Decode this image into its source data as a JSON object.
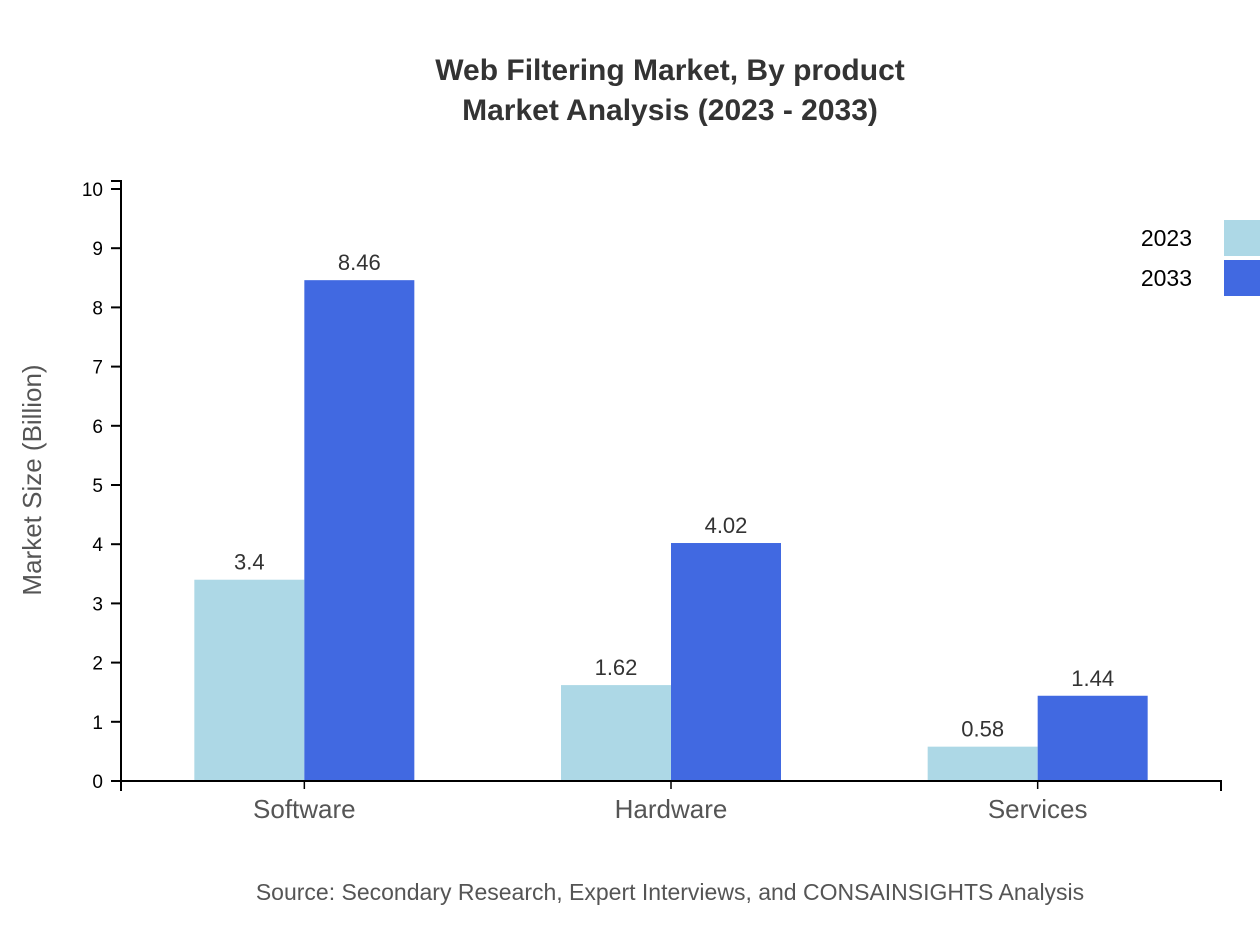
{
  "chart_data": {
    "type": "bar",
    "title": [
      "Web Filtering Market, By product",
      "Market Analysis (2023 - 2033)"
    ],
    "xlabel": "",
    "ylabel": "Market Size (Billion)",
    "categories": [
      "Software",
      "Hardware",
      "Services"
    ],
    "series": [
      {
        "name": "2023",
        "values": [
          3.4,
          1.62,
          0.58
        ],
        "color": "#add8e6"
      },
      {
        "name": "2033",
        "values": [
          8.46,
          4.02,
          1.44
        ],
        "color": "#4169e1"
      }
    ],
    "ylim": [
      0,
      10
    ],
    "yticks": [
      0,
      1,
      2,
      3,
      4,
      5,
      6,
      7,
      8,
      9,
      10
    ],
    "grid": false,
    "legend_position": "top-right",
    "source": "Source: Secondary Research, Expert Interviews, and CONSAINSIGHTS Analysis"
  }
}
